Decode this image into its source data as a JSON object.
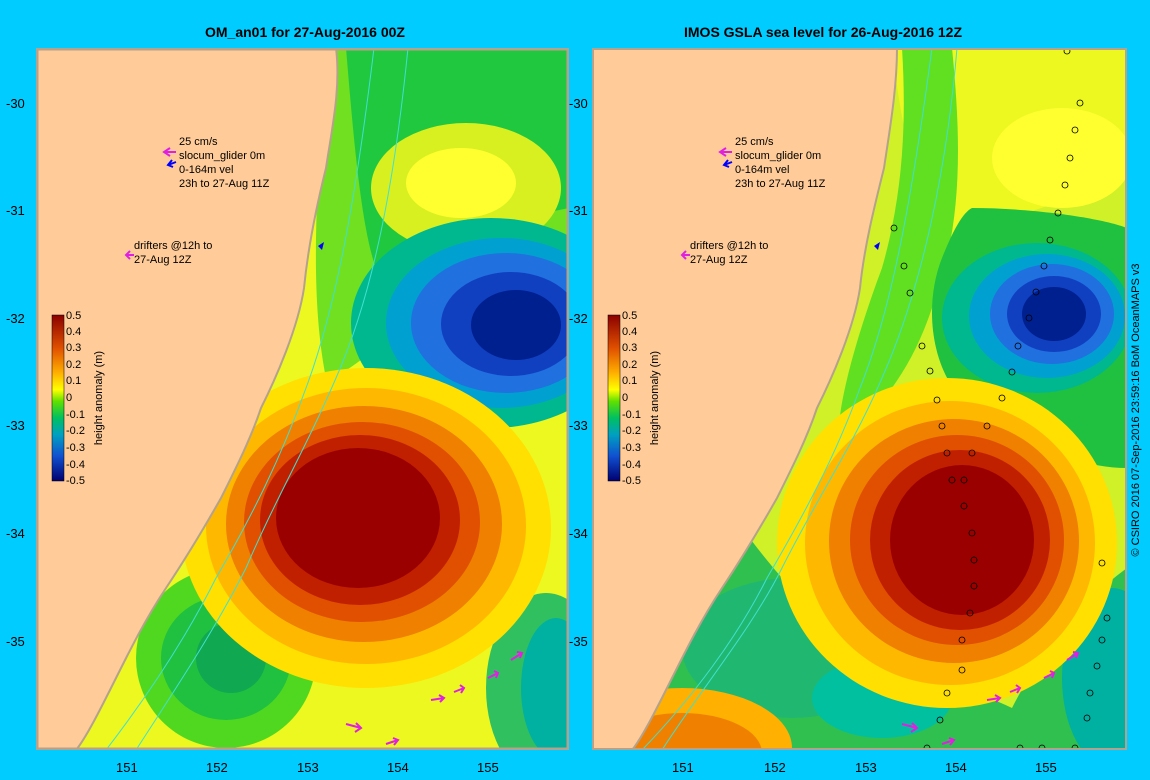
{
  "panels": [
    {
      "title": "OM_an01 for 27-Aug-2016 00Z",
      "legend": {
        "scale": "25 cm/s",
        "glider": "slocum_glider 0m",
        "vel": "0-164m vel",
        "period": "23h to 27-Aug 11Z"
      },
      "drifters": {
        "line1": "drifters @12h to",
        "line2": "27-Aug 12Z"
      }
    },
    {
      "title": "IMOS GSLA sea level  for 26-Aug-2016 12Z",
      "legend": {
        "scale": "25 cm/s",
        "glider": "slocum_glider 0m",
        "vel": "0-164m vel",
        "period": "23h to 27-Aug 11Z"
      },
      "drifters": {
        "line1": "drifters @12h to",
        "line2": "27-Aug 12Z"
      }
    }
  ],
  "colorbar": {
    "label": "height anomaly (m)",
    "ticks": [
      "0.5",
      "0.4",
      "0.3",
      "0.2",
      "0.1",
      "0",
      "-0.1",
      "-0.2",
      "-0.3",
      "-0.4",
      "-0.5"
    ]
  },
  "axes": {
    "lat_ticks": [
      "-30",
      "-31",
      "-32",
      "-33",
      "-34",
      "-35"
    ],
    "lon_ticks": [
      "151",
      "152",
      "153",
      "154",
      "155"
    ]
  },
  "credit": "© CSIRO 2016  07-Sep-2016 23:59:16 BoM OceanMAPS v3",
  "colors": {
    "frame": "#00ccff",
    "land": "#ffcc99",
    "coast": "#b4a28c",
    "isobath": "#40e0d0",
    "drifter": "#e020e0",
    "glider": "#0000ff"
  }
}
